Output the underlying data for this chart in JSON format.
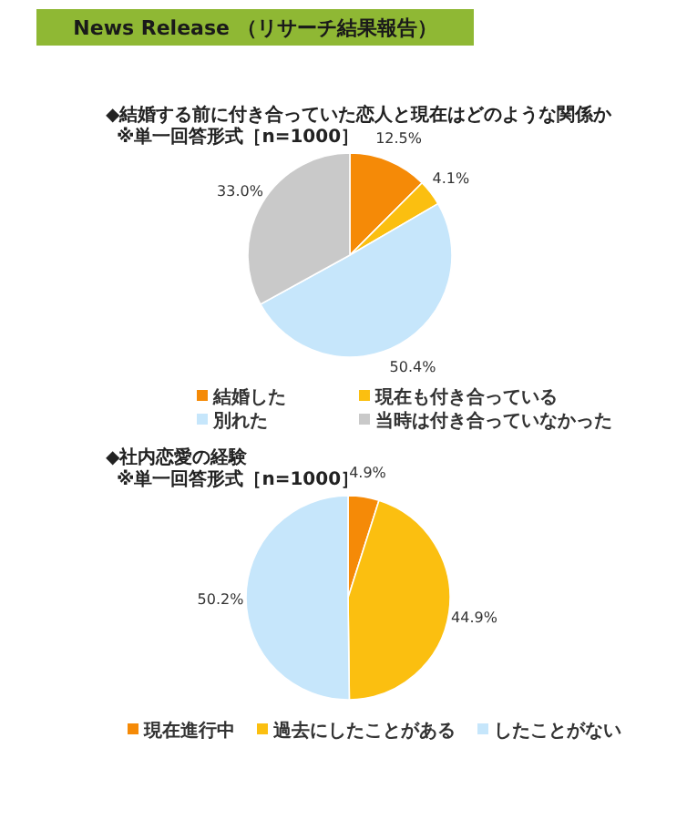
{
  "chart_data": [
    {
      "type": "pie",
      "title": "◆結婚する前に付き合っていた恋人と現在はどのような関係か",
      "subtitle": "※単一回答形式［n=1000］",
      "annotations": [
        "News Release （リサーチ結果報告）"
      ],
      "categories": [
        "結婚した",
        "現在も付き合っている",
        "別れた",
        "当時は付き合っていなかった"
      ],
      "values": [
        12.5,
        4.1,
        50.4,
        33.0
      ],
      "value_labels": [
        "12.5%",
        "4.1%",
        "50.4%",
        "33.0%"
      ],
      "colors": [
        "#f58a07",
        "#fbbf10",
        "#c6e6fb",
        "#c9c9c9"
      ],
      "legend": "bottom"
    },
    {
      "type": "pie",
      "title": "◆社内恋愛の経験",
      "subtitle": "※単一回答形式［n=1000］",
      "categories": [
        "現在進行中",
        "過去にしたことがある",
        "したことがない"
      ],
      "values": [
        4.9,
        44.9,
        50.2
      ],
      "value_labels": [
        "4.9%",
        "44.9%",
        "50.2%"
      ],
      "colors": [
        "#f58a07",
        "#fbbf10",
        "#c6e6fb"
      ],
      "legend": "bottom"
    }
  ]
}
